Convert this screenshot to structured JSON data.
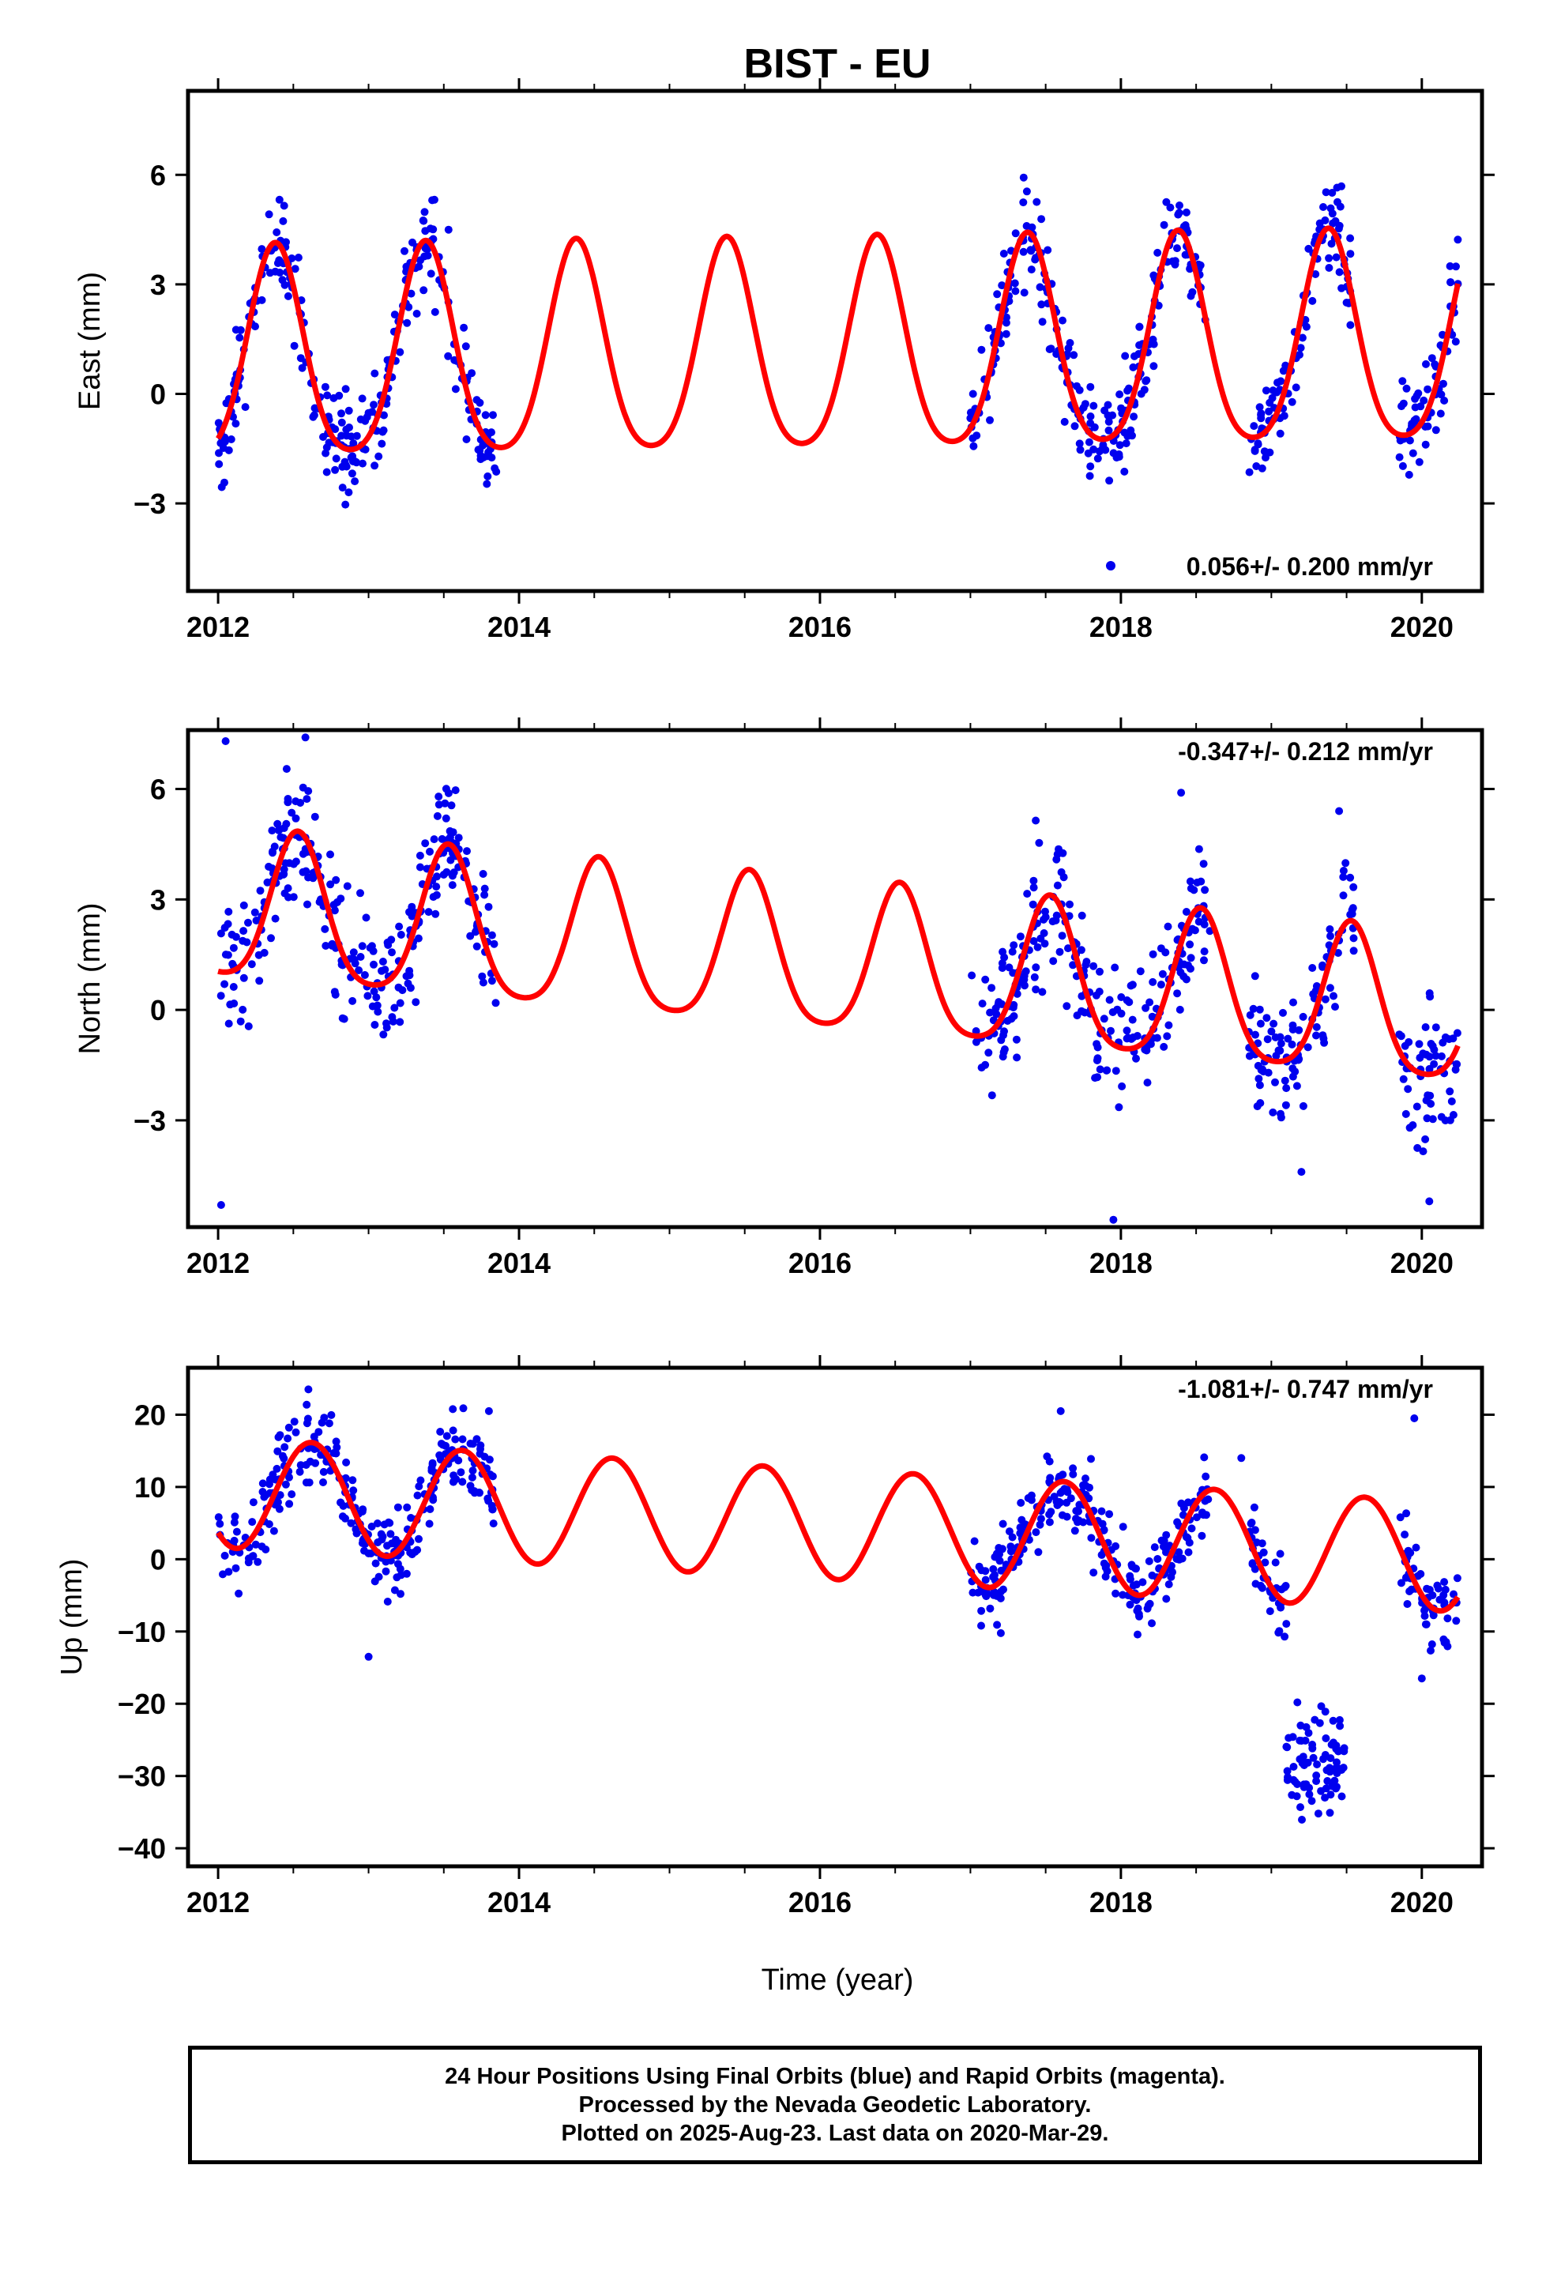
{
  "title": "BIST - EU",
  "x_axis_label": "Time (year)",
  "footer": [
    "24 Hour Positions Using Final Orbits (blue) and Rapid Orbits (magenta).",
    "Processed by the Nevada Geodetic Laboratory.",
    "Plotted on 2025-Aug-23. Last data on 2020-Mar-29."
  ],
  "colors": {
    "points": "#0000ee",
    "model": "#ff0000",
    "frame": "#000000"
  },
  "chart_data": [
    {
      "type": "scatter",
      "ylabel": "East (mm)",
      "xlim": [
        2011.8,
        2020.4
      ],
      "ylim": [
        -5.4,
        8.3
      ],
      "x_ticks": [
        2012,
        2014,
        2016,
        2018,
        2020
      ],
      "y_ticks": [
        -3,
        0,
        3,
        6
      ],
      "rate_label": "0.056+/- 0.200 mm/yr",
      "rate_placement": "bottom-right",
      "legend_marker": true,
      "grid": false,
      "model": {
        "offset": 1.05,
        "trend": 0.056,
        "amplitude": 2.85,
        "peak_phase": 0.38,
        "semiannual_amplitude": 0.45
      },
      "data_segments": [
        [
          2012.0,
          2013.85
        ],
        [
          2017.0,
          2018.6
        ],
        [
          2018.85,
          2019.55
        ],
        [
          2019.85,
          2020.24
        ]
      ],
      "noise": 1.0,
      "outliers": []
    },
    {
      "type": "scatter",
      "ylabel": "North (mm)",
      "xlim": [
        2011.8,
        2020.4
      ],
      "ylim": [
        -5.9,
        7.6
      ],
      "x_ticks": [
        2012,
        2014,
        2016,
        2018,
        2020
      ],
      "y_ticks": [
        -3,
        0,
        3,
        6
      ],
      "rate_label": "-0.347+/- 0.212 mm/yr",
      "rate_placement": "top-right",
      "legend_marker": false,
      "grid": false,
      "model": {
        "offset": 1.3,
        "trend": -0.347,
        "amplitude": 2.0,
        "peak_phase": 0.53,
        "semiannual_amplitude": 0.35
      },
      "data_segments": [
        [
          2012.0,
          2013.85
        ],
        [
          2017.0,
          2018.6
        ],
        [
          2018.85,
          2019.55
        ],
        [
          2019.85,
          2020.24
        ]
      ],
      "noise": 1.3,
      "outliers": [
        [
          2012.05,
          7.3
        ],
        [
          2012.58,
          7.4
        ],
        [
          2012.02,
          -5.3
        ],
        [
          2017.95,
          -5.7
        ],
        [
          2018.4,
          5.9
        ],
        [
          2019.45,
          5.4
        ],
        [
          2020.05,
          -5.2
        ],
        [
          2019.2,
          -4.4
        ]
      ]
    },
    {
      "type": "scatter",
      "ylabel": "Up (mm)",
      "xlim": [
        2011.8,
        2020.4
      ],
      "ylim": [
        -42.5,
        26.5
      ],
      "x_ticks": [
        2012,
        2014,
        2016,
        2018,
        2020
      ],
      "y_ticks": [
        -40,
        -30,
        -20,
        -10,
        0,
        10,
        20
      ],
      "rate_label": "-1.081+/- 0.747 mm/yr",
      "rate_placement": "top-right",
      "legend_marker": false,
      "grid": false,
      "model": {
        "offset": 4.9,
        "trend": -1.081,
        "amplitude": 7.6,
        "peak_phase": 0.62,
        "semiannual_amplitude": 0.0
      },
      "data_segments": [
        [
          2012.0,
          2013.85
        ],
        [
          2017.0,
          2018.6
        ],
        [
          2018.85,
          2019.1
        ],
        [
          2019.85,
          2020.24
        ]
      ],
      "noise": 4.0,
      "anomaly": {
        "x_range": [
          2019.1,
          2019.5
        ],
        "y_center": -29,
        "spread": 5.5
      },
      "outliers": [
        [
          2012.6,
          23.5
        ],
        [
          2013.0,
          -13.5
        ],
        [
          2017.6,
          20.5
        ],
        [
          2018.8,
          14.0
        ],
        [
          2019.95,
          19.5
        ],
        [
          2020.0,
          -16.5
        ],
        [
          2013.8,
          20.5
        ]
      ]
    }
  ]
}
